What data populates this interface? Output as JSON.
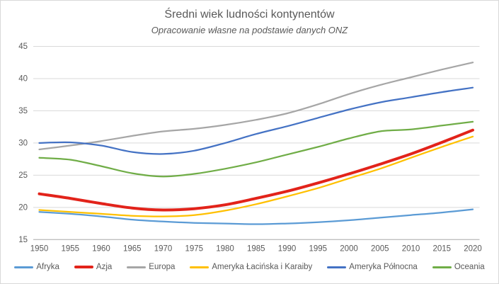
{
  "header": {
    "title": "Średni wiek ludności kontynentów",
    "subtitle": "Opracowanie własne na podstawie danych ONZ"
  },
  "chart_data": {
    "type": "line",
    "title": "Średni wiek ludności kontynentów",
    "subtitle": "Opracowanie własne na podstawie danych ONZ",
    "x": [
      1950,
      1955,
      1960,
      1965,
      1970,
      1975,
      1980,
      1985,
      1990,
      1995,
      2000,
      2005,
      2010,
      2015,
      2020
    ],
    "series": [
      {
        "name": "Afryka",
        "color": "#5B9BD5",
        "line_width": 2.25,
        "values": [
          19.3,
          19.0,
          18.6,
          18.1,
          17.8,
          17.6,
          17.5,
          17.4,
          17.5,
          17.7,
          18.0,
          18.4,
          18.8,
          19.2,
          19.7
        ]
      },
      {
        "name": "Azja",
        "color": "#E2231A",
        "line_width": 4,
        "values": [
          22.1,
          21.4,
          20.6,
          19.9,
          19.6,
          19.8,
          20.4,
          21.4,
          22.5,
          23.8,
          25.2,
          26.7,
          28.3,
          30.1,
          32.0
        ]
      },
      {
        "name": "Europa",
        "color": "#A6A6A6",
        "line_width": 2.25,
        "values": [
          29.0,
          29.6,
          30.3,
          31.1,
          31.8,
          32.2,
          32.8,
          33.6,
          34.6,
          36.0,
          37.6,
          39.0,
          40.2,
          41.4,
          42.5
        ]
      },
      {
        "name": "Ameryka Łacińska i Karaiby",
        "color": "#FFC000",
        "line_width": 2.25,
        "values": [
          19.6,
          19.3,
          19.0,
          18.7,
          18.6,
          18.8,
          19.5,
          20.5,
          21.7,
          23.0,
          24.5,
          26.0,
          27.7,
          29.4,
          31.0
        ]
      },
      {
        "name": "Ameryka Północna",
        "color": "#4472C4",
        "line_width": 2.25,
        "values": [
          30.0,
          30.1,
          29.6,
          28.6,
          28.3,
          28.8,
          30.0,
          31.4,
          32.6,
          33.9,
          35.2,
          36.3,
          37.1,
          37.9,
          38.6
        ]
      },
      {
        "name": "Oceania",
        "color": "#70AD47",
        "line_width": 2.25,
        "values": [
          27.7,
          27.4,
          26.4,
          25.3,
          24.8,
          25.2,
          26.0,
          27.0,
          28.2,
          29.4,
          30.7,
          31.8,
          32.1,
          32.7,
          33.3
        ]
      }
    ],
    "xlabel": "",
    "ylabel": "",
    "ylim": [
      15,
      45
    ],
    "yticks": [
      15,
      20,
      25,
      30,
      35,
      40,
      45
    ],
    "grid": "horizontal-only",
    "legend_position": "bottom",
    "axis_label_color": "#595959",
    "gridline_color": "#D9D9D9",
    "axis_line_color": "#BFBFBF"
  }
}
